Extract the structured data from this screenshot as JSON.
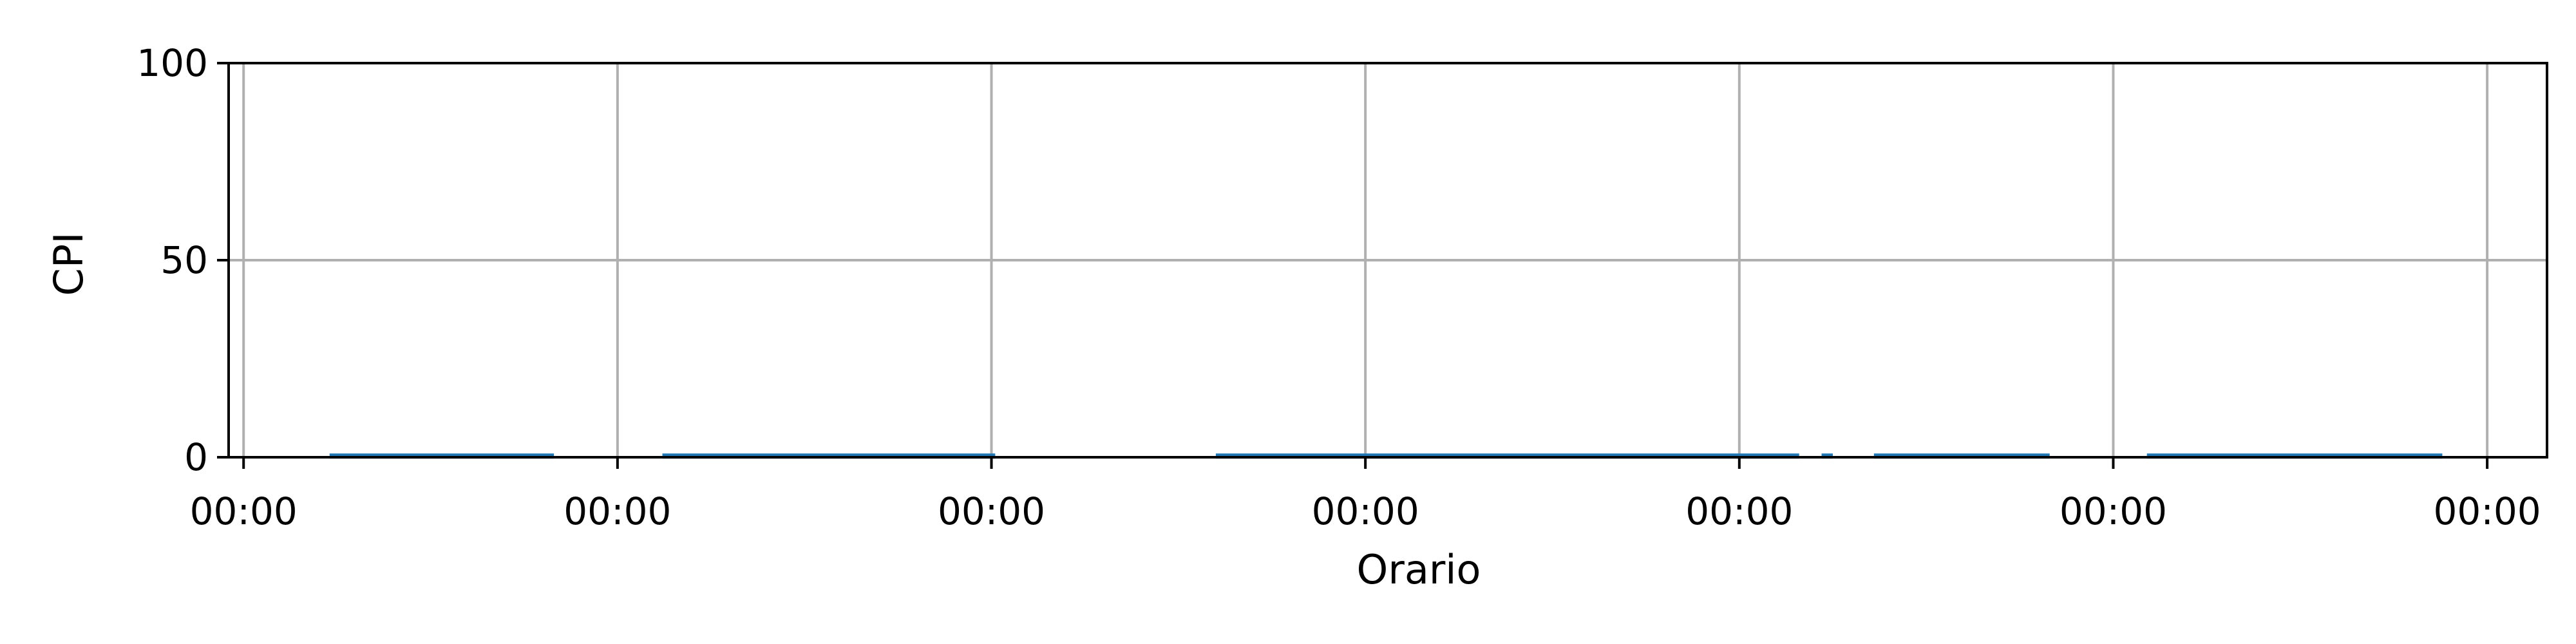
{
  "chart_data": {
    "type": "area",
    "title": "",
    "xlabel": "Orario",
    "ylabel": "CPI",
    "x_tick_labels": [
      "00:00",
      "00:00",
      "00:00",
      "00:00",
      "00:00",
      "00:00",
      "00:00"
    ],
    "y_ticks": [
      0,
      50,
      100
    ],
    "ylim": [
      0,
      100
    ],
    "xlim": [
      -0.04,
      6.16
    ],
    "grid": true,
    "legend": "none",
    "series": [
      {
        "color": "#1f77b4",
        "segments": [
          {
            "x_start": 0.23,
            "x_end": 0.83,
            "value": 0.3
          },
          {
            "x_start": 1.12,
            "x_end": 2.01,
            "value": 0.3
          },
          {
            "x_start": 2.6,
            "x_end": 4.16,
            "value": 0.3
          },
          {
            "x_start": 4.22,
            "x_end": 4.25,
            "value": 0.3
          },
          {
            "x_start": 4.36,
            "x_end": 4.83,
            "value": 0.3
          },
          {
            "x_start": 5.09,
            "x_end": 5.88,
            "value": 0.3
          }
        ]
      }
    ]
  }
}
